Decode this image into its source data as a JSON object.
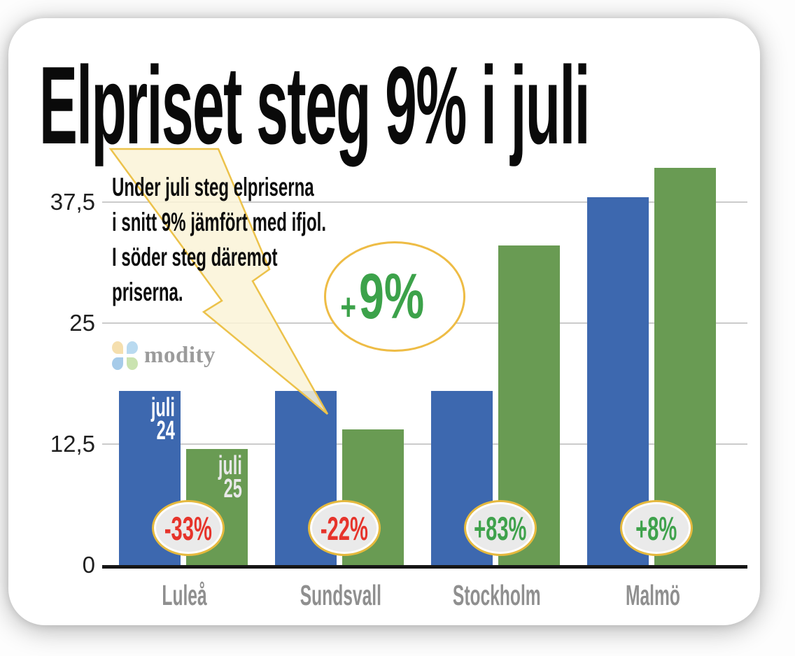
{
  "title": "Elpriset steg 9% i juli",
  "annotation": "Under juli steg elpriserna\ni snitt 9% jämfört med ifjol.\nI söder steg däremot\npriserna.",
  "logo": {
    "text": "modity"
  },
  "highlight": {
    "sign": "+",
    "value": "9%"
  },
  "colors": {
    "bar_blue": "#3d68af",
    "bar_green": "#699b53",
    "badge_red_text": "#e6342b",
    "badge_green_text": "#3fa24c",
    "badge_border_gold": "#e5b93e",
    "badge_fill": "#eaeaea",
    "bolt_fill": "#faf3d7",
    "bolt_stroke": "#ecc24b",
    "grid": "#cbcbcb",
    "axis": "#161616",
    "xlabel_gray": "#8f8f8f",
    "logo_gray": "#9b9b9b"
  },
  "chart_data": {
    "type": "bar",
    "title": "Elpriset steg 9% i juli",
    "subtitle_note": "Under juli steg elpriserna i snitt 9% jämfört med ifjol. I söder steg däremot priserna.",
    "average_change": "+9%",
    "categories": [
      "Luleå",
      "Sundsvall",
      "Stockholm",
      "Malmö"
    ],
    "series": [
      {
        "name": "juli 24",
        "label_lines": "juli\n24",
        "color": "#3d68af",
        "label_color": "#ffffff",
        "values": [
          18,
          18,
          18,
          38
        ]
      },
      {
        "name": "juli 25",
        "label_lines": "juli\n25",
        "color": "#699b53",
        "label_color": "#e9e9e9",
        "values": [
          12,
          14,
          33,
          41
        ]
      }
    ],
    "change_badges": [
      {
        "category": "Luleå",
        "label": "-33%",
        "text_color": "#e6342b"
      },
      {
        "category": "Sundsvall",
        "label": "-22%",
        "text_color": "#e6342b"
      },
      {
        "category": "Stockholm",
        "label": "+83%",
        "text_color": "#3fa24c"
      },
      {
        "category": "Malmö",
        "label": "+8%",
        "text_color": "#3fa24c"
      }
    ],
    "yticks": [
      "37,5",
      "25",
      "12,5",
      "0"
    ],
    "ytick_values": [
      37.5,
      25,
      12.5,
      0
    ],
    "ylim": [
      0,
      43.5
    ],
    "grid": true,
    "legend_position": "none",
    "ylabel": "",
    "xlabel": ""
  }
}
